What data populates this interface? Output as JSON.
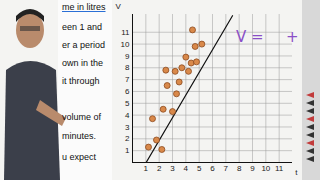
{
  "chart_data": {
    "type": "scatter",
    "x_label": "t",
    "y_label": "V",
    "x": [
      1.2,
      1.5,
      1.8,
      2.2,
      2.3,
      2.5,
      2.6,
      3.0,
      3.2,
      3.3,
      3.5,
      3.7,
      4.0,
      4.2,
      4.4,
      4.5,
      4.7,
      4.8,
      5.2
    ],
    "values": [
      1.3,
      3.7,
      1.9,
      1.1,
      4.5,
      7.8,
      6.5,
      4.3,
      7.7,
      5.8,
      6.8,
      8.0,
      8.9,
      7.7,
      8.4,
      11.2,
      9.8,
      8.5,
      10.0
    ],
    "color": "#d9894a",
    "marker": "circle",
    "fit": {
      "x": [
        0.45,
        7.5
      ],
      "values": [
        -1.1,
        12.4
      ],
      "color": "#111111",
      "line_style": "solid"
    },
    "xlim": [
      0,
      12
    ],
    "ylim": [
      0,
      12.5
    ],
    "xticks": [
      1,
      2,
      3,
      4,
      5,
      6,
      7,
      8,
      9,
      10,
      11
    ],
    "yticks": [
      1,
      2,
      3,
      4,
      5,
      6,
      7,
      8,
      9,
      10,
      11
    ],
    "grid": true,
    "annotations": [
      {
        "text": "V =",
        "color": "#8a4fc7"
      },
      {
        "text": "+",
        "color": "#8a4fc7"
      }
    ]
  },
  "page_text": [
    "me in litres",
    "een 1 and",
    "er a period",
    "own in the",
    "it through",
    "volume of",
    "minutes.",
    "u expect"
  ]
}
